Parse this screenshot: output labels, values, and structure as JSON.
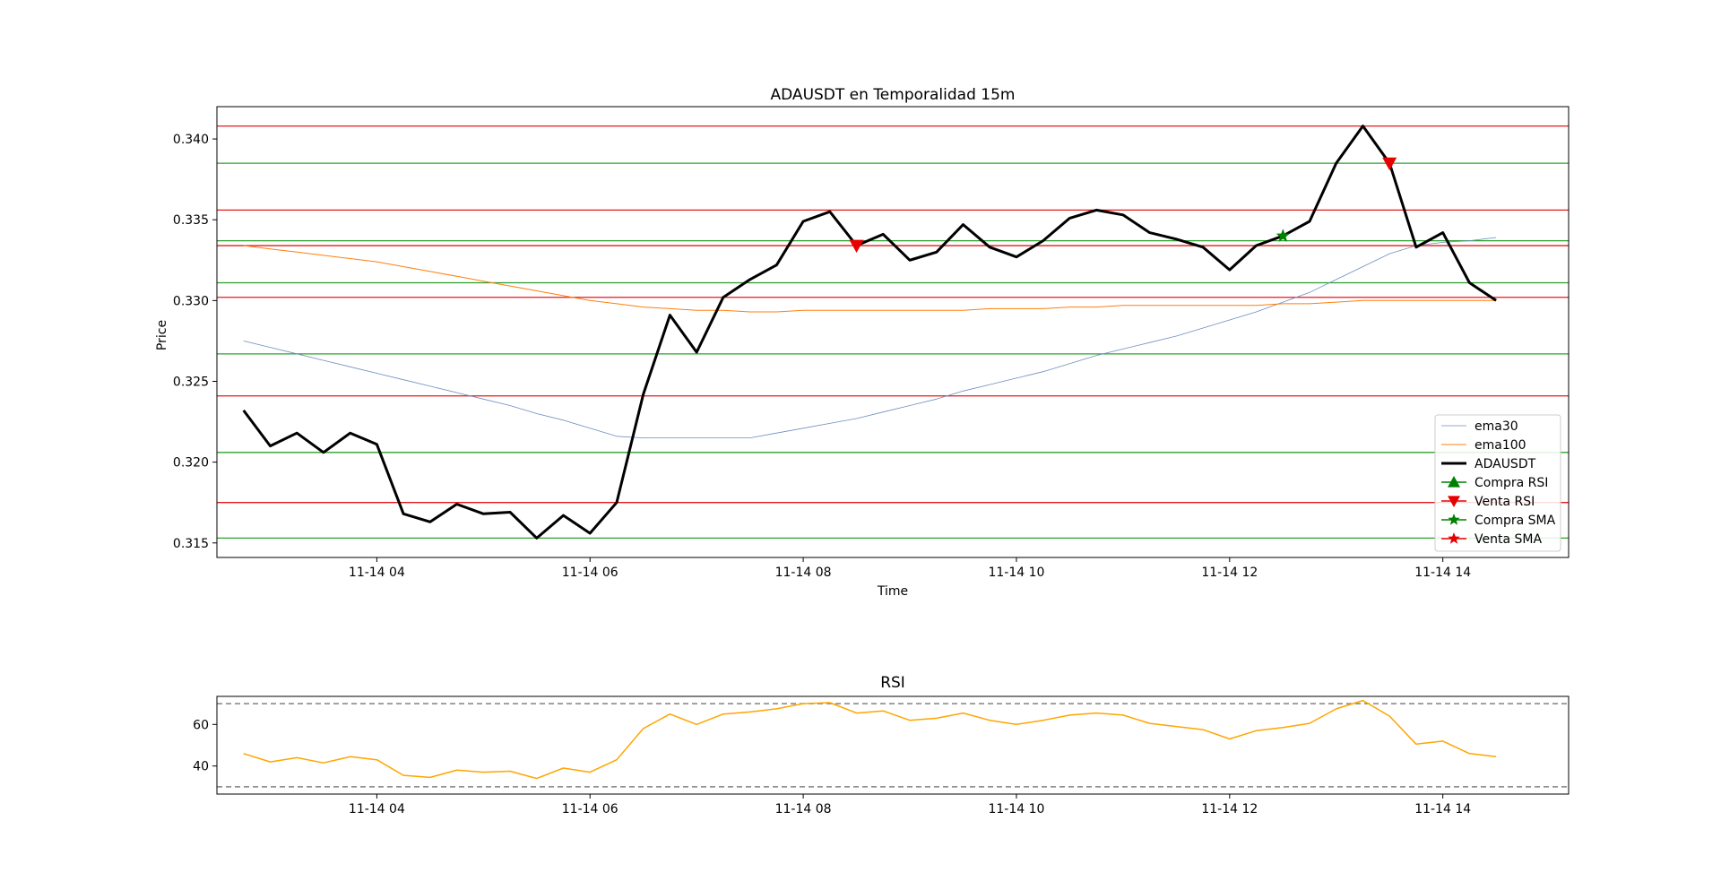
{
  "chart_data": [
    {
      "type": "line",
      "title": "ADAUSDT en Temporalidad 15m",
      "xlabel": "Time",
      "ylabel": "Price",
      "xlim": [
        2.5,
        15.18
      ],
      "ylim": [
        0.3141,
        0.342
      ],
      "x_ticks": [
        {
          "x": 4,
          "label": "11-14 04"
        },
        {
          "x": 6,
          "label": "11-14 06"
        },
        {
          "x": 8,
          "label": "11-14 08"
        },
        {
          "x": 10,
          "label": "11-14 10"
        },
        {
          "x": 12,
          "label": "11-14 12"
        },
        {
          "x": 14,
          "label": "11-14 14"
        }
      ],
      "y_ticks": [
        {
          "y": 0.315,
          "label": "0.315"
        },
        {
          "y": 0.32,
          "label": "0.320"
        },
        {
          "y": 0.325,
          "label": "0.325"
        },
        {
          "y": 0.33,
          "label": "0.330"
        },
        {
          "y": 0.335,
          "label": "0.335"
        },
        {
          "y": 0.34,
          "label": "0.340"
        }
      ],
      "x": [
        2.75,
        3.0,
        3.25,
        3.5,
        3.75,
        4.0,
        4.25,
        4.5,
        4.75,
        5.0,
        5.25,
        5.5,
        5.75,
        6.0,
        6.25,
        6.5,
        6.75,
        7.0,
        7.25,
        7.5,
        7.75,
        8.0,
        8.25,
        8.5,
        8.75,
        9.0,
        9.25,
        9.5,
        9.75,
        10.0,
        10.25,
        10.5,
        10.75,
        11.0,
        11.25,
        11.5,
        11.75,
        12.0,
        12.25,
        12.5,
        12.75,
        13.0,
        13.25,
        13.5,
        13.75,
        14.0,
        14.25,
        14.5
      ],
      "series": [
        {
          "name": "ema30",
          "color": "#6c8ebf",
          "width": 0.8,
          "values": [
            0.3275,
            0.3271,
            0.3267,
            0.3263,
            0.3259,
            0.3255,
            0.3251,
            0.3247,
            0.3243,
            0.3239,
            0.3235,
            0.323,
            0.3226,
            0.3221,
            0.3216,
            0.3215,
            0.3215,
            0.3215,
            0.3215,
            0.3215,
            0.3218,
            0.3221,
            0.3224,
            0.3227,
            0.3231,
            0.3235,
            0.3239,
            0.3244,
            0.3248,
            0.3252,
            0.3256,
            0.3261,
            0.3266,
            0.327,
            0.3274,
            0.3278,
            0.3283,
            0.3288,
            0.3293,
            0.3299,
            0.3305,
            0.3313,
            0.3321,
            0.3329,
            0.3334,
            0.3336,
            0.3337,
            0.3339
          ]
        },
        {
          "name": "ema100",
          "color": "#ff7f0e",
          "width": 1.0,
          "values": [
            0.3334,
            0.3332,
            0.333,
            0.3328,
            0.3326,
            0.3324,
            0.3321,
            0.3318,
            0.3315,
            0.3312,
            0.3309,
            0.3306,
            0.3303,
            0.33,
            0.3298,
            0.3296,
            0.3295,
            0.3294,
            0.3294,
            0.3293,
            0.3293,
            0.3294,
            0.3294,
            0.3294,
            0.3294,
            0.3294,
            0.3294,
            0.3294,
            0.3295,
            0.3295,
            0.3295,
            0.3296,
            0.3296,
            0.3297,
            0.3297,
            0.3297,
            0.3297,
            0.3297,
            0.3297,
            0.3298,
            0.3298,
            0.3299,
            0.33,
            0.33,
            0.33,
            0.33,
            0.33,
            0.33
          ]
        },
        {
          "name": "ADAUSDT",
          "color": "#000000",
          "width": 3.0,
          "values": [
            0.3232,
            0.321,
            0.3218,
            0.3206,
            0.3218,
            0.3211,
            0.3168,
            0.3163,
            0.3174,
            0.3168,
            0.3169,
            0.3153,
            0.3167,
            0.3156,
            0.3175,
            0.3242,
            0.3291,
            0.3268,
            0.3302,
            0.3313,
            0.3322,
            0.3349,
            0.3355,
            0.3334,
            0.3341,
            0.3325,
            0.333,
            0.3347,
            0.3333,
            0.3327,
            0.3337,
            0.3351,
            0.3356,
            0.3353,
            0.3342,
            0.3338,
            0.3333,
            0.3319,
            0.3334,
            0.334,
            0.3349,
            0.3385,
            0.3408,
            0.3385,
            0.3333,
            0.3342,
            0.3311,
            0.33
          ]
        }
      ],
      "hlines": [
        {
          "y": 0.3408,
          "color": "#e41a1c"
        },
        {
          "y": 0.3385,
          "color": "#2ca02c"
        },
        {
          "y": 0.3356,
          "color": "#e41a1c"
        },
        {
          "y": 0.3337,
          "color": "#2ca02c"
        },
        {
          "y": 0.3334,
          "color": "#e41a1c"
        },
        {
          "y": 0.3311,
          "color": "#2ca02c"
        },
        {
          "y": 0.3302,
          "color": "#e41a1c"
        },
        {
          "y": 0.3267,
          "color": "#2ca02c"
        },
        {
          "y": 0.3241,
          "color": "#e41a1c"
        },
        {
          "y": 0.3206,
          "color": "#2ca02c"
        },
        {
          "y": 0.3175,
          "color": "#e41a1c"
        },
        {
          "y": 0.3153,
          "color": "#2ca02c"
        }
      ],
      "markers": [
        {
          "series": "Compra RSI",
          "x": [],
          "y": []
        },
        {
          "series": "Venta RSI",
          "x": [
            8.5,
            13.5
          ],
          "y": [
            0.3334,
            0.3385
          ]
        },
        {
          "series": "Compra SMA",
          "x": [
            12.5
          ],
          "y": [
            0.334
          ]
        },
        {
          "series": "Venta SMA",
          "x": [],
          "y": []
        }
      ],
      "legend": {
        "placement": "lower right",
        "entries": [
          {
            "label": "ema30",
            "kind": "line",
            "color": "#6c8ebf",
            "width": 0.8
          },
          {
            "label": "ema100",
            "kind": "line",
            "color": "#ff7f0e",
            "width": 1.0
          },
          {
            "label": "ADAUSDT",
            "kind": "line",
            "color": "#000000",
            "width": 3.0
          },
          {
            "label": "Compra RSI",
            "kind": "triangle-up",
            "color": "#008000"
          },
          {
            "label": "Venta RSI",
            "kind": "triangle-down",
            "color": "#e60000"
          },
          {
            "label": "Compra SMA",
            "kind": "star",
            "color": "#008000"
          },
          {
            "label": "Venta SMA",
            "kind": "star",
            "color": "#e60000"
          }
        ]
      },
      "grid": false
    },
    {
      "type": "line",
      "title": "RSI",
      "xlabel": "",
      "ylabel": "",
      "xlim": [
        2.5,
        15.18
      ],
      "ylim": [
        26.5,
        73.5
      ],
      "x_ticks": [
        {
          "x": 4,
          "label": "11-14 04"
        },
        {
          "x": 6,
          "label": "11-14 06"
        },
        {
          "x": 8,
          "label": "11-14 08"
        },
        {
          "x": 10,
          "label": "11-14 10"
        },
        {
          "x": 12,
          "label": "11-14 12"
        },
        {
          "x": 14,
          "label": "11-14 14"
        }
      ],
      "y_ticks": [
        {
          "y": 40,
          "label": "40"
        },
        {
          "y": 60,
          "label": "60"
        }
      ],
      "reference_lines": [
        30,
        70
      ],
      "x": [
        2.75,
        3.0,
        3.25,
        3.5,
        3.75,
        4.0,
        4.25,
        4.5,
        4.75,
        5.0,
        5.25,
        5.5,
        5.75,
        6.0,
        6.25,
        6.5,
        6.75,
        7.0,
        7.25,
        7.5,
        7.75,
        8.0,
        8.25,
        8.5,
        8.75,
        9.0,
        9.25,
        9.5,
        9.75,
        10.0,
        10.25,
        10.5,
        10.75,
        11.0,
        11.25,
        11.5,
        11.75,
        12.0,
        12.25,
        12.5,
        12.75,
        13.0,
        13.25,
        13.5,
        13.75,
        14.0,
        14.25,
        14.5
      ],
      "series": [
        {
          "color": "#ffa500",
          "width": 1.5,
          "values": [
            46,
            42,
            44,
            41.5,
            44.5,
            43,
            35.5,
            34.5,
            38,
            37,
            37.5,
            34,
            39,
            37,
            43,
            58,
            65,
            60,
            65,
            66,
            67.5,
            70,
            70.5,
            65.5,
            66.5,
            62,
            63,
            65.5,
            62,
            60,
            62,
            64.5,
            65.5,
            64.5,
            60.5,
            59,
            57.5,
            53,
            57,
            58.5,
            60.5,
            67.5,
            71.5,
            64,
            50.5,
            52,
            46,
            44.5
          ]
        }
      ],
      "grid": false
    }
  ]
}
